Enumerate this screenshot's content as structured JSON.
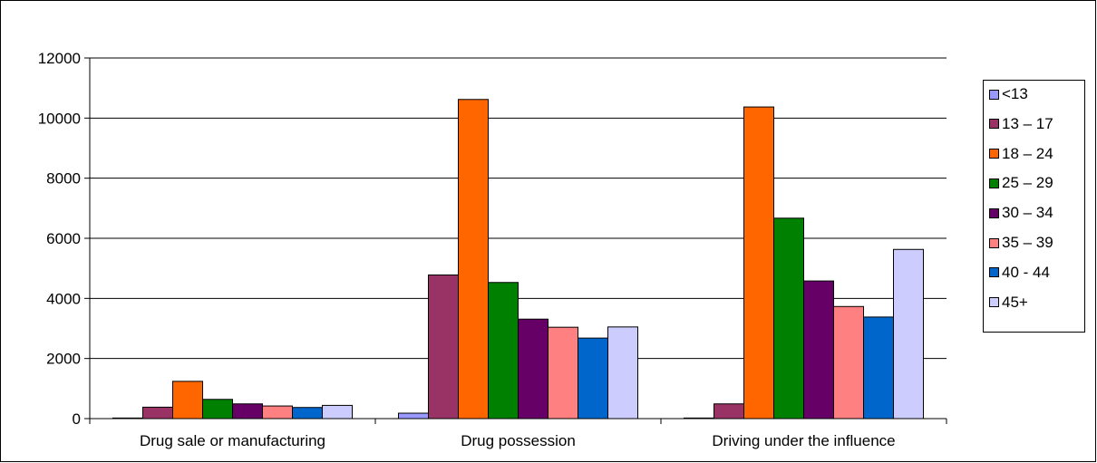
{
  "chart_data": {
    "type": "bar",
    "title": "",
    "xlabel": "",
    "ylabel": "",
    "ylim": [
      0,
      12000
    ],
    "yticks": [
      0,
      2000,
      4000,
      6000,
      8000,
      10000,
      12000
    ],
    "grid": "horizontal",
    "legend_position": "right",
    "categories": [
      "Drug sale or manufacturing",
      "Drug possession",
      "Driving under the influence"
    ],
    "series": [
      {
        "name": "<13",
        "color": "#9999FF",
        "values": [
          20,
          180,
          20
        ]
      },
      {
        "name": "13 – 17",
        "color": "#993366",
        "values": [
          380,
          4780,
          490
        ]
      },
      {
        "name": "18 – 24",
        "color": "#FF6600",
        "values": [
          1240,
          10620,
          10370
        ]
      },
      {
        "name": "25 – 29",
        "color": "#008000",
        "values": [
          640,
          4530,
          6670
        ]
      },
      {
        "name": "30 – 34",
        "color": "#660066",
        "values": [
          490,
          3310,
          4580
        ]
      },
      {
        "name": "35 – 39",
        "color": "#FF8080",
        "values": [
          420,
          3040,
          3730
        ]
      },
      {
        "name": "40 - 44",
        "color": "#0066CC",
        "values": [
          370,
          2680,
          3380
        ]
      },
      {
        "name": "45+",
        "color": "#CCCCFF",
        "values": [
          440,
          3050,
          5630
        ]
      }
    ]
  }
}
